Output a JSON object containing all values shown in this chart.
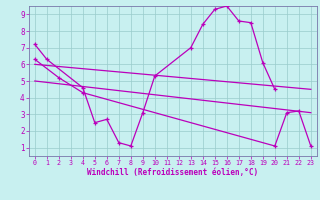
{
  "xlabel": "Windchill (Refroidissement éolien,°C)",
  "bg_color": "#c8f0f0",
  "line_color": "#bb00bb",
  "grid_color": "#99cccc",
  "xlim": [
    -0.5,
    23.5
  ],
  "ylim": [
    0.5,
    9.5
  ],
  "xticks": [
    0,
    1,
    2,
    3,
    4,
    5,
    6,
    7,
    8,
    9,
    10,
    11,
    12,
    13,
    14,
    15,
    16,
    17,
    18,
    19,
    20,
    21,
    22,
    23
  ],
  "yticks": [
    1,
    2,
    3,
    4,
    5,
    6,
    7,
    8,
    9
  ],
  "series1_x": [
    0,
    1,
    4,
    5,
    6,
    7,
    8,
    9,
    10,
    13,
    14,
    15,
    16,
    17,
    18,
    19,
    20
  ],
  "series1_y": [
    7.2,
    6.3,
    4.6,
    2.5,
    2.7,
    1.3,
    1.1,
    3.1,
    5.3,
    7.0,
    8.4,
    9.3,
    9.5,
    8.6,
    8.5,
    6.1,
    4.5
  ],
  "series2_x": [
    0,
    2,
    4,
    20,
    21,
    22,
    23
  ],
  "series2_y": [
    6.3,
    5.2,
    4.3,
    1.1,
    3.1,
    3.2,
    1.1
  ],
  "series3_x": [
    0,
    23
  ],
  "series3_y": [
    6.0,
    4.5
  ],
  "series4_x": [
    0,
    23
  ],
  "series4_y": [
    5.0,
    3.1
  ]
}
